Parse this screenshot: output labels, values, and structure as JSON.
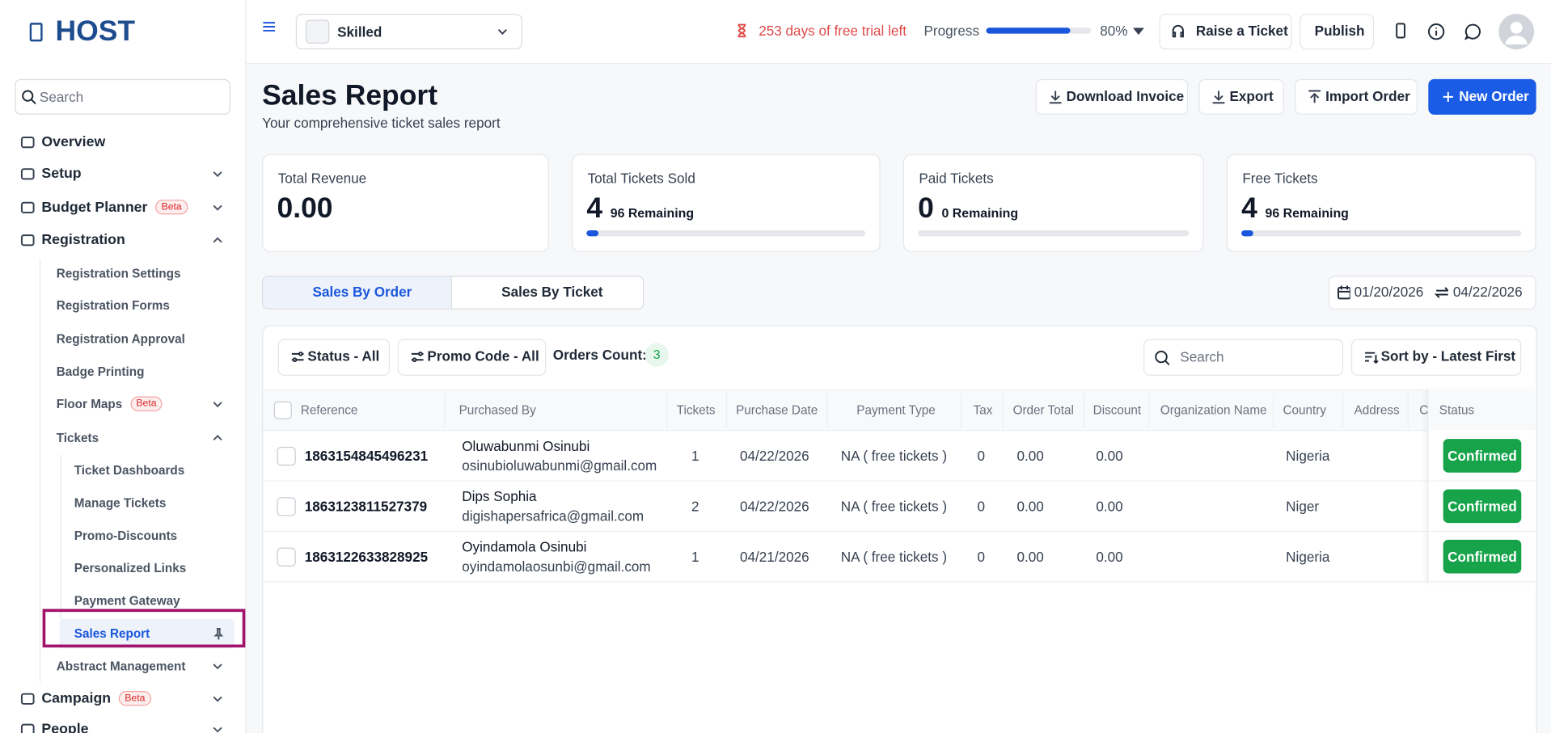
{
  "sidebar": {
    "logo": "HOST",
    "search_placeholder": "Search",
    "nav": [
      {
        "label": "Overview"
      },
      {
        "label": "Setup"
      },
      {
        "label": "Budget Planner",
        "badge": "Beta"
      },
      {
        "label": "Registration",
        "children": [
          {
            "label": "Registration Settings"
          },
          {
            "label": "Registration Forms"
          },
          {
            "label": "Registration Approval"
          },
          {
            "label": "Badge Printing"
          },
          {
            "label": "Floor Maps",
            "badge": "Beta"
          },
          {
            "label": "Tickets",
            "children": [
              {
                "label": "Ticket Dashboards"
              },
              {
                "label": "Manage Tickets"
              },
              {
                "label": "Promo-Discounts"
              },
              {
                "label": "Personalized Links"
              },
              {
                "label": "Payment Gateway"
              },
              {
                "label": "Sales Report"
              }
            ]
          },
          {
            "label": "Abstract Management"
          }
        ]
      },
      {
        "label": "Campaign",
        "badge": "Beta"
      },
      {
        "label": "People"
      }
    ]
  },
  "topbar": {
    "event": "Skilled",
    "trial": "253 days of free trial left",
    "progress_label": "Progress",
    "progress": {
      "value": 80,
      "label": "80%"
    },
    "raise_ticket": "Raise a Ticket",
    "publish": "Publish"
  },
  "header": {
    "title": "Sales Report",
    "subtitle": "Your comprehensive ticket sales report",
    "actions": [
      "Download Invoice",
      "Export",
      "Import Order",
      "New Order"
    ]
  },
  "stats": [
    {
      "label": "Total Revenue",
      "value": "0.00"
    },
    {
      "label": "Total Tickets Sold",
      "value": 4,
      "remaining": "96 Remaining"
    },
    {
      "label": "Paid Tickets",
      "value": 0,
      "remaining": "0 Remaining"
    },
    {
      "label": "Free Tickets",
      "value": 4,
      "remaining": "96 Remaining"
    }
  ],
  "tabs": [
    "Sales By Order",
    "Sales By Ticket"
  ],
  "date_range": {
    "start": "01/20/2026",
    "end": "04/22/2026"
  },
  "filters": {
    "status": "Status - All",
    "promo": "Promo Code - All",
    "orders_count_label": "Orders Count:",
    "orders_count": 3,
    "search_placeholder": "Search",
    "sort": "Sort by - Latest First"
  },
  "table": {
    "columns": [
      "Reference",
      "Purchased By",
      "Tickets",
      "Purchase Date",
      "Payment Type",
      "Tax",
      "Order Total",
      "Discount",
      "Organization Name",
      "Country",
      "Address",
      "C",
      "Status"
    ],
    "rows": [
      {
        "reference": "1863154845496231",
        "name": "Oluwabunmi Osinubi",
        "email": "osinubioluwabunmi@gmail.com",
        "tickets": 1,
        "purchase_date": "04/22/2026",
        "payment_type": "NA ( free tickets )",
        "tax": 0,
        "order_total": "0.00",
        "discount": "0.00",
        "country": "Nigeria",
        "status": "Confirmed"
      },
      {
        "reference": "1863123811527379",
        "name": "Dips Sophia",
        "email": "digishapersafrica@gmail.com",
        "tickets": 2,
        "purchase_date": "04/22/2026",
        "payment_type": "NA ( free tickets )",
        "tax": 0,
        "order_total": "0.00",
        "discount": "0.00",
        "country": "Niger",
        "status": "Confirmed"
      },
      {
        "reference": "1863122633828925",
        "name": "Oyindamola Osinubi",
        "email": "oyindamolaosunbi@gmail.com",
        "tickets": 1,
        "purchase_date": "04/21/2026",
        "payment_type": "NA ( free tickets )",
        "tax": 0,
        "order_total": "0.00",
        "discount": "0.00",
        "country": "Nigeria",
        "status": "Confirmed"
      }
    ]
  }
}
